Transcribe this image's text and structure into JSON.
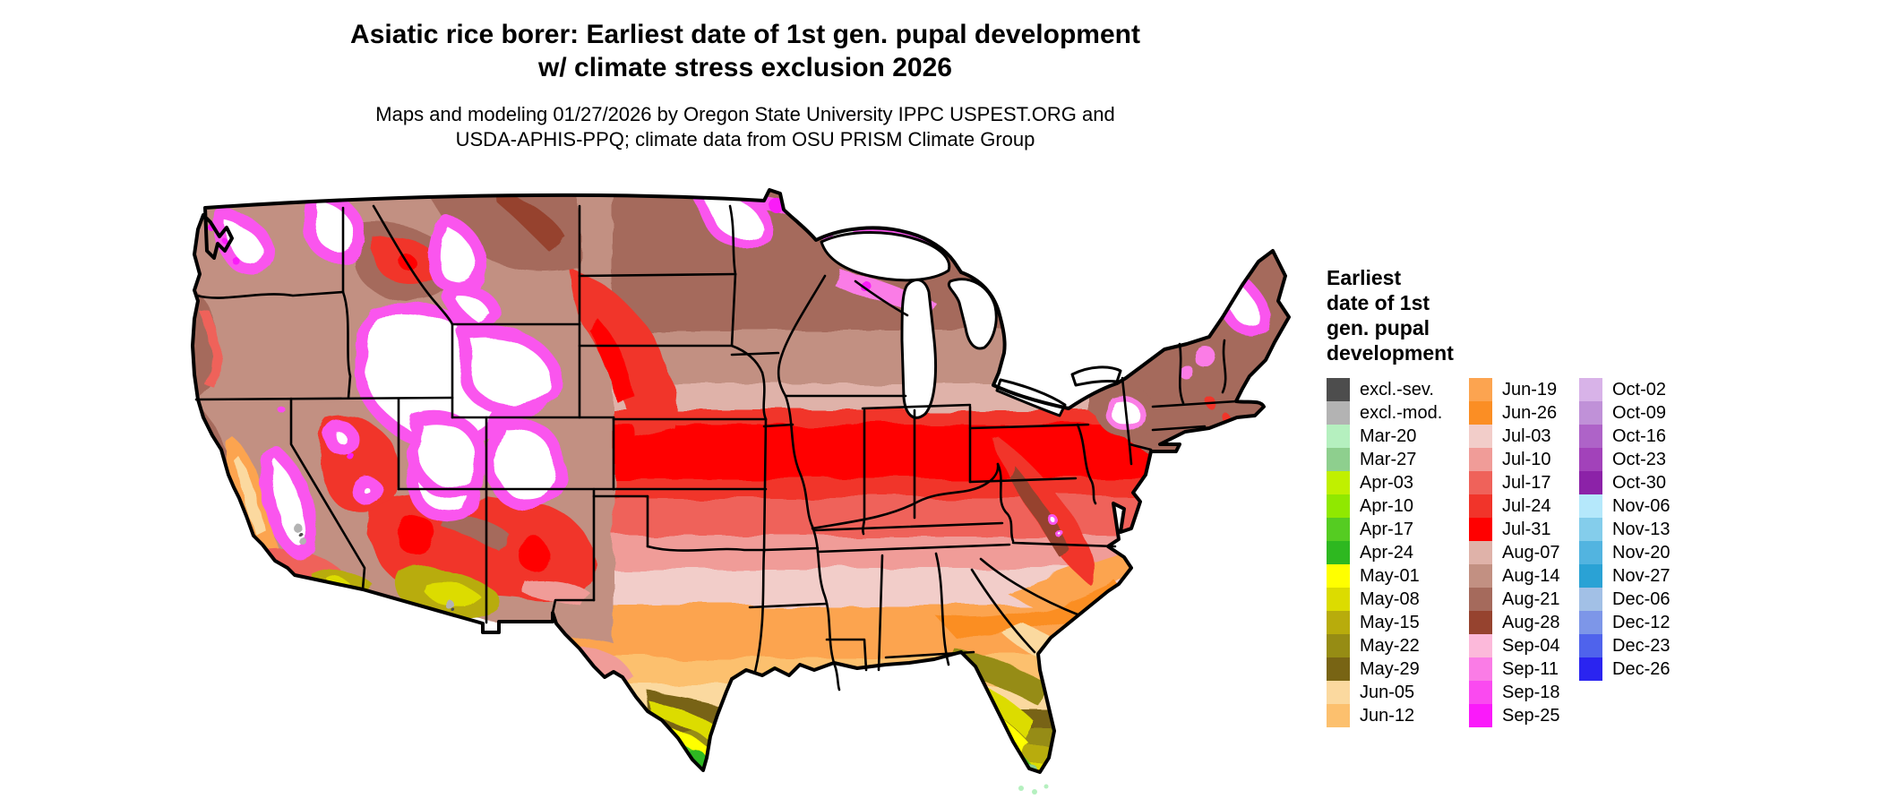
{
  "title": {
    "line1": "Asiatic rice borer: Earliest date of 1st gen. pupal development",
    "line2": "w/ climate stress exclusion 2026"
  },
  "subtitle": {
    "line1": "Maps and modeling 01/27/2026 by Oregon State University IPPC USPEST.ORG and",
    "line2": "USDA-APHIS-PPQ; climate data from OSU PRISM Climate Group"
  },
  "map": {
    "kind": "us-conus-choropleth-raster",
    "no_data_color": "#ffffff",
    "boundary_color": "#000000"
  },
  "legend": {
    "title_lines": [
      "Earliest",
      "date of 1st",
      "gen. pupal",
      "development"
    ],
    "columns": [
      {
        "entries": [
          {
            "label": "excl.-sev.",
            "color": "#4d4d4d"
          },
          {
            "label": "excl.-mod.",
            "color": "#b3b3b3"
          },
          {
            "label": "Mar-20",
            "color": "#b5f0bf"
          },
          {
            "label": "Mar-27",
            "color": "#8ecf8e"
          },
          {
            "label": "Apr-03",
            "color": "#c0f000"
          },
          {
            "label": "Apr-10",
            "color": "#90e800"
          },
          {
            "label": "Apr-17",
            "color": "#55cc22"
          },
          {
            "label": "Apr-24",
            "color": "#2eb820"
          },
          {
            "label": "May-01",
            "color": "#ffff00"
          },
          {
            "label": "May-08",
            "color": "#dcdc00"
          },
          {
            "label": "May-15",
            "color": "#b8ac0c"
          },
          {
            "label": "May-22",
            "color": "#968c14"
          },
          {
            "label": "May-29",
            "color": "#786414"
          },
          {
            "label": "Jun-05",
            "color": "#fbd99f"
          },
          {
            "label": "Jun-12",
            "color": "#fcc06e"
          }
        ]
      },
      {
        "entries": [
          {
            "label": "Jun-19",
            "color": "#fca450"
          },
          {
            "label": "Jun-26",
            "color": "#fb8e24"
          },
          {
            "label": "Jul-03",
            "color": "#f2cdc9"
          },
          {
            "label": "Jul-10",
            "color": "#f09c98"
          },
          {
            "label": "Jul-17",
            "color": "#ef625a"
          },
          {
            "label": "Jul-24",
            "color": "#f1342a"
          },
          {
            "label": "Jul-31",
            "color": "#ff0000"
          },
          {
            "label": "Aug-07",
            "color": "#dfb2a9"
          },
          {
            "label": "Aug-14",
            "color": "#c29082"
          },
          {
            "label": "Aug-21",
            "color": "#a56a5c"
          },
          {
            "label": "Aug-28",
            "color": "#96432f"
          },
          {
            "label": "Sep-04",
            "color": "#fcb9da"
          },
          {
            "label": "Sep-11",
            "color": "#fa7ce6"
          },
          {
            "label": "Sep-18",
            "color": "#fa4af0"
          },
          {
            "label": "Sep-25",
            "color": "#fa1afa"
          }
        ]
      },
      {
        "entries": [
          {
            "label": "Oct-02",
            "color": "#d8b3e8"
          },
          {
            "label": "Oct-09",
            "color": "#c091d8"
          },
          {
            "label": "Oct-16",
            "color": "#ae63c8"
          },
          {
            "label": "Oct-23",
            "color": "#a242ba"
          },
          {
            "label": "Oct-30",
            "color": "#8c22a8"
          },
          {
            "label": "Nov-06",
            "color": "#b5e8fb"
          },
          {
            "label": "Nov-13",
            "color": "#84cdeb"
          },
          {
            "label": "Nov-20",
            "color": "#52b4e0"
          },
          {
            "label": "Nov-27",
            "color": "#2aa2d5"
          },
          {
            "label": "Dec-06",
            "color": "#a2c0e6"
          },
          {
            "label": "Dec-12",
            "color": "#7d96e8"
          },
          {
            "label": "Dec-23",
            "color": "#4f63ec"
          },
          {
            "label": "Dec-26",
            "color": "#2a24f0"
          }
        ]
      }
    ]
  }
}
